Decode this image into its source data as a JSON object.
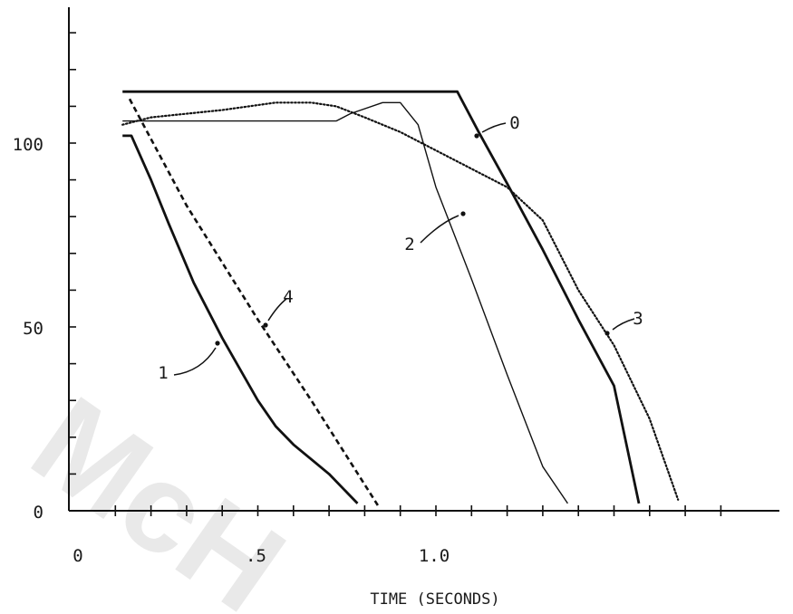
{
  "chart_data": {
    "type": "line",
    "title": "",
    "xlabel": "TIME (SECONDS)",
    "ylabel": "",
    "xlim": [
      0,
      1.8
    ],
    "ylim": [
      0,
      135
    ],
    "x_tick_labels": [
      {
        "value": 0,
        "label": "0"
      },
      {
        "value": 0.5,
        "label": ".5"
      },
      {
        "value": 1.0,
        "label": "1.0"
      }
    ],
    "y_tick_labels": [
      {
        "value": 0,
        "label": "0"
      },
      {
        "value": 50,
        "label": "50"
      },
      {
        "value": 100,
        "label": "100"
      }
    ],
    "grid": false,
    "series": [
      {
        "name": "0",
        "style": "solid-thick",
        "x": [
          0.12,
          1.06,
          1.12,
          1.2,
          1.3,
          1.4,
          1.5,
          1.57
        ],
        "y": [
          114,
          114,
          103,
          89,
          71,
          52,
          34,
          2
        ]
      },
      {
        "name": "1",
        "style": "solid-thick",
        "x": [
          0.12,
          0.145,
          0.2,
          0.25,
          0.32,
          0.4,
          0.5,
          0.55,
          0.6,
          0.7,
          0.78
        ],
        "y": [
          102,
          102,
          90,
          78,
          62,
          47,
          30,
          23,
          18,
          10,
          2
        ]
      },
      {
        "name": "2",
        "style": "solid-thin",
        "x": [
          0.12,
          0.72,
          0.76,
          0.85,
          0.9,
          0.95,
          1.0,
          1.1,
          1.2,
          1.3,
          1.37
        ],
        "y": [
          106,
          106,
          108,
          111,
          111,
          105,
          88,
          63,
          37,
          12,
          2
        ]
      },
      {
        "name": "3",
        "style": "dotted",
        "x": [
          0.12,
          0.2,
          0.4,
          0.55,
          0.65,
          0.72,
          0.8,
          0.9,
          1.0,
          1.1,
          1.2,
          1.3,
          1.4,
          1.5,
          1.6,
          1.68
        ],
        "y": [
          105,
          107,
          109,
          111,
          111,
          110,
          107,
          103,
          98,
          93,
          88,
          79,
          60,
          45,
          25,
          3
        ]
      },
      {
        "name": "4",
        "style": "dashed",
        "x": [
          0.14,
          0.3,
          0.5,
          0.65,
          0.84
        ],
        "y": [
          112,
          83,
          52,
          30,
          1
        ]
      }
    ],
    "annotations": [
      {
        "text": "0",
        "series": "0"
      },
      {
        "text": "1",
        "series": "1"
      },
      {
        "text": "2",
        "series": "2"
      },
      {
        "text": "3",
        "series": "3"
      },
      {
        "text": "4",
        "series": "4"
      }
    ]
  }
}
